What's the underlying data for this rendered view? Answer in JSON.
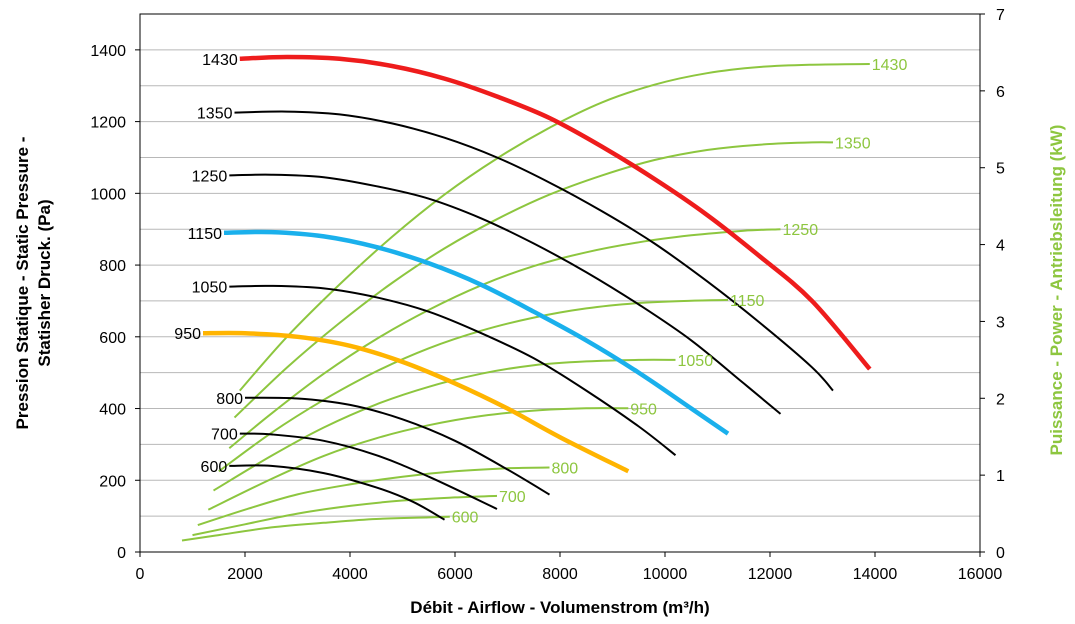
{
  "chart_data": {
    "type": "line",
    "xlabel": "Débit - Airflow - Volumenstrom (m³/h)",
    "ylabel_line1": "Pression Statique - Static Pressure -",
    "ylabel_line2": "Statisher Druck. (Pa)",
    "y2label": "Puissance - Power - Antriebsleitung (kW)",
    "xlim": [
      0,
      16000
    ],
    "ylim": [
      0,
      1500
    ],
    "y2lim": [
      0,
      7
    ],
    "x_ticks": [
      "0",
      "2000",
      "4000",
      "6000",
      "8000",
      "10000",
      "12000",
      "14000",
      "16000"
    ],
    "y_ticks": [
      "0",
      "200",
      "400",
      "600",
      "800",
      "1000",
      "1200",
      "1400"
    ],
    "y2_ticks": [
      "0",
      "1",
      "2",
      "3",
      "4",
      "5",
      "6",
      "7"
    ],
    "grid": "horizontal",
    "colors": {
      "black": "#000000",
      "red": "#ee1c1c",
      "blue": "#1ab0ec",
      "orange": "#ffb400",
      "green": "#8dc63f"
    },
    "pressure_series": [
      {
        "name": "600",
        "color": "black",
        "x": [
          1700,
          2500,
          3500,
          4500,
          5200,
          5800
        ],
        "y": [
          240,
          240,
          220,
          180,
          140,
          90
        ]
      },
      {
        "name": "700",
        "color": "black",
        "x": [
          1900,
          2500,
          3500,
          4500,
          5500,
          6800
        ],
        "y": [
          330,
          328,
          310,
          270,
          210,
          120
        ]
      },
      {
        "name": "800",
        "color": "black",
        "x": [
          2000,
          3000,
          4000,
          5000,
          6000,
          7000,
          7800
        ],
        "y": [
          430,
          428,
          410,
          370,
          310,
          230,
          160
        ]
      },
      {
        "name": "950",
        "color": "orange",
        "x": [
          1200,
          2000,
          3000,
          4000,
          5000,
          6000,
          7000,
          8000,
          9300
        ],
        "y": [
          610,
          610,
          600,
          575,
          530,
          470,
          400,
          320,
          225
        ]
      },
      {
        "name": "1050",
        "color": "black",
        "x": [
          1700,
          2500,
          3500,
          4500,
          5500,
          6500,
          7500,
          8500,
          9500,
          10200
        ],
        "y": [
          740,
          742,
          735,
          710,
          670,
          610,
          540,
          450,
          350,
          270
        ]
      },
      {
        "name": "1150",
        "color": "blue",
        "x": [
          1600,
          2500,
          3500,
          4500,
          5500,
          6500,
          7500,
          8500,
          9500,
          10500,
          11200
        ],
        "y": [
          890,
          892,
          880,
          850,
          805,
          745,
          670,
          590,
          500,
          400,
          330
        ]
      },
      {
        "name": "1250",
        "color": "black",
        "x": [
          1700,
          2500,
          3500,
          4500,
          5500,
          6500,
          7500,
          8500,
          9500,
          10500,
          11500,
          12200
        ],
        "y": [
          1050,
          1052,
          1045,
          1020,
          985,
          930,
          860,
          780,
          690,
          590,
          470,
          385
        ]
      },
      {
        "name": "1350",
        "color": "black",
        "x": [
          1800,
          2800,
          3800,
          4800,
          5800,
          6800,
          7800,
          8800,
          9800,
          10800,
          11800,
          12800,
          13200
        ],
        "y": [
          1225,
          1228,
          1220,
          1195,
          1155,
          1100,
          1030,
          950,
          860,
          755,
          640,
          515,
          450
        ]
      },
      {
        "name": "1430",
        "color": "red",
        "x": [
          1900,
          2800,
          3800,
          4800,
          5800,
          6800,
          7800,
          8800,
          9800,
          10800,
          11800,
          12800,
          13900
        ],
        "y": [
          1375,
          1380,
          1375,
          1355,
          1320,
          1270,
          1210,
          1130,
          1040,
          940,
          825,
          700,
          510
        ]
      }
    ],
    "power_series": [
      {
        "name": "600",
        "x": [
          800,
          1500,
          2500,
          3500,
          4500,
          5500,
          5900
        ],
        "y": [
          0.15,
          0.22,
          0.32,
          0.38,
          0.43,
          0.45,
          0.46
        ]
      },
      {
        "name": "700",
        "x": [
          1000,
          2000,
          3000,
          4000,
          5000,
          6000,
          6800
        ],
        "y": [
          0.22,
          0.36,
          0.5,
          0.6,
          0.67,
          0.71,
          0.73
        ]
      },
      {
        "name": "800",
        "x": [
          1100,
          2000,
          3000,
          4000,
          5000,
          6000,
          7000,
          7800
        ],
        "y": [
          0.35,
          0.55,
          0.75,
          0.88,
          0.98,
          1.05,
          1.09,
          1.1
        ]
      },
      {
        "name": "950",
        "x": [
          1300,
          2500,
          3500,
          4500,
          5500,
          6500,
          7500,
          8500,
          9300
        ],
        "y": [
          0.55,
          0.95,
          1.25,
          1.48,
          1.65,
          1.77,
          1.84,
          1.87,
          1.87
        ]
      },
      {
        "name": "1050",
        "x": [
          1400,
          2500,
          3500,
          4500,
          5500,
          6500,
          7500,
          8500,
          9500,
          10200
        ],
        "y": [
          0.8,
          1.25,
          1.62,
          1.92,
          2.15,
          2.32,
          2.43,
          2.48,
          2.5,
          2.5
        ]
      },
      {
        "name": "1150",
        "x": [
          1500,
          2500,
          3500,
          4500,
          5500,
          6500,
          7500,
          8500,
          9500,
          10500,
          11200
        ],
        "y": [
          1.05,
          1.55,
          1.98,
          2.35,
          2.65,
          2.88,
          3.05,
          3.17,
          3.24,
          3.27,
          3.28
        ]
      },
      {
        "name": "1250",
        "x": [
          1700,
          2500,
          3500,
          4500,
          5500,
          6500,
          7500,
          8500,
          9500,
          10500,
          11500,
          12200
        ],
        "y": [
          1.35,
          1.8,
          2.32,
          2.77,
          3.15,
          3.47,
          3.72,
          3.9,
          4.03,
          4.12,
          4.18,
          4.2
        ]
      },
      {
        "name": "1350",
        "x": [
          1800,
          2800,
          3800,
          4800,
          5800,
          6800,
          7800,
          8800,
          9800,
          10800,
          11800,
          12800,
          13200
        ],
        "y": [
          1.75,
          2.4,
          2.98,
          3.5,
          3.95,
          4.33,
          4.65,
          4.9,
          5.1,
          5.23,
          5.3,
          5.33,
          5.33
        ]
      },
      {
        "name": "1430",
        "x": [
          1900,
          2800,
          3800,
          4800,
          5800,
          6800,
          7800,
          8800,
          9800,
          10800,
          11800,
          12800,
          13900
        ],
        "y": [
          2.1,
          2.8,
          3.48,
          4.1,
          4.65,
          5.12,
          5.52,
          5.85,
          6.08,
          6.23,
          6.31,
          6.34,
          6.35
        ]
      }
    ]
  }
}
